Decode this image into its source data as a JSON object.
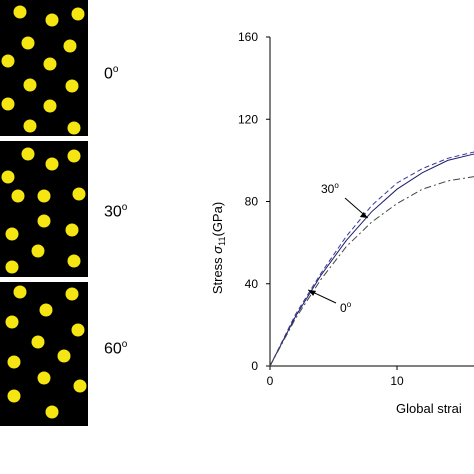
{
  "panels": [
    {
      "label": "0",
      "unit": "o"
    },
    {
      "label": "30",
      "unit": "o"
    },
    {
      "label": "60",
      "unit": "o"
    }
  ],
  "colors": {
    "fiber": "#f5e512",
    "matrix": "#000000",
    "solid": "#1c1c6b",
    "dashed": "#3a3a9a",
    "dashdot": "#444444"
  },
  "chart_data": {
    "type": "line",
    "xlabel": "Global strai",
    "ylabel_prefix": "Stress ",
    "ylabel_symbol": "σ",
    "ylabel_sub": "11",
    "ylabel_unit": "(GPa)",
    "xlim": [
      0,
      20
    ],
    "ylim": [
      0,
      160
    ],
    "xticks": [
      "0",
      "10"
    ],
    "yticks": [
      "0",
      "40",
      "80",
      "120",
      "160"
    ],
    "grid": false,
    "series": [
      {
        "style": "solid",
        "points": [
          [
            0,
            0
          ],
          [
            2,
            24
          ],
          [
            4,
            44
          ],
          [
            6,
            61
          ],
          [
            8,
            75
          ],
          [
            10,
            86
          ],
          [
            12,
            94
          ],
          [
            14,
            100
          ],
          [
            16,
            103
          ],
          [
            18,
            104
          ]
        ]
      },
      {
        "style": "dashed",
        "points": [
          [
            0,
            0
          ],
          [
            2,
            25
          ],
          [
            4,
            45
          ],
          [
            6,
            63
          ],
          [
            8,
            78
          ],
          [
            10,
            89
          ],
          [
            12,
            96
          ],
          [
            14,
            101
          ],
          [
            16,
            104
          ],
          [
            18,
            106
          ]
        ]
      },
      {
        "style": "dashdot",
        "points": [
          [
            0,
            0
          ],
          [
            2,
            23
          ],
          [
            4,
            42
          ],
          [
            6,
            58
          ],
          [
            8,
            70
          ],
          [
            10,
            79
          ],
          [
            12,
            86
          ],
          [
            14,
            90
          ],
          [
            16,
            92
          ],
          [
            18,
            93
          ]
        ]
      }
    ],
    "annotations": [
      {
        "text": "30",
        "unit": "o",
        "arrow_to": [
          7.7,
          72
        ]
      },
      {
        "text": "0",
        "unit": "o",
        "arrow_to": [
          3.0,
          37
        ]
      }
    ]
  }
}
